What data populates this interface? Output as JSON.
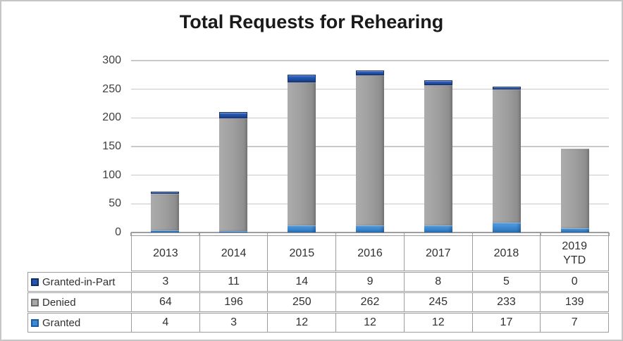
{
  "chart_data": {
    "type": "bar",
    "stacked": true,
    "title": "Total Requests for Rehearing",
    "categories": [
      "2013",
      "2014",
      "2015",
      "2016",
      "2017",
      "2018",
      "2019 YTD"
    ],
    "series": [
      {
        "name": "Granted",
        "color": "#3D8AD4",
        "values": [
          4,
          3,
          12,
          12,
          12,
          17,
          7
        ]
      },
      {
        "name": "Denied",
        "color": "#9D9D9D",
        "values": [
          64,
          196,
          250,
          262,
          245,
          233,
          139
        ]
      },
      {
        "name": "Granted-in-Part",
        "color": "#2356AE",
        "values": [
          3,
          11,
          14,
          9,
          8,
          5,
          0
        ]
      }
    ],
    "totals": [
      71,
      210,
      276,
      283,
      265,
      255,
      146
    ],
    "xlabel": "",
    "ylabel": "",
    "ylim": [
      0,
      300
    ],
    "yticks": [
      0,
      50,
      100,
      150,
      200,
      250,
      300
    ],
    "grid": true,
    "gridline_color": "#C9C9C9",
    "legend_position": "data-table-left"
  },
  "table": {
    "column_headers": [
      "2013",
      "2014",
      "2015",
      "2016",
      "2017",
      "2018",
      "2019 YTD"
    ],
    "rows": [
      {
        "label": "Granted-in-Part",
        "key_color": "#2356AE",
        "values": [
          3,
          11,
          14,
          9,
          8,
          5,
          0
        ]
      },
      {
        "label": "Denied",
        "key_color": "#9D9D9D",
        "values": [
          64,
          196,
          250,
          262,
          245,
          233,
          139
        ]
      },
      {
        "label": "Granted",
        "key_color": "#3D8AD4",
        "values": [
          4,
          3,
          12,
          12,
          12,
          17,
          7
        ]
      }
    ]
  }
}
